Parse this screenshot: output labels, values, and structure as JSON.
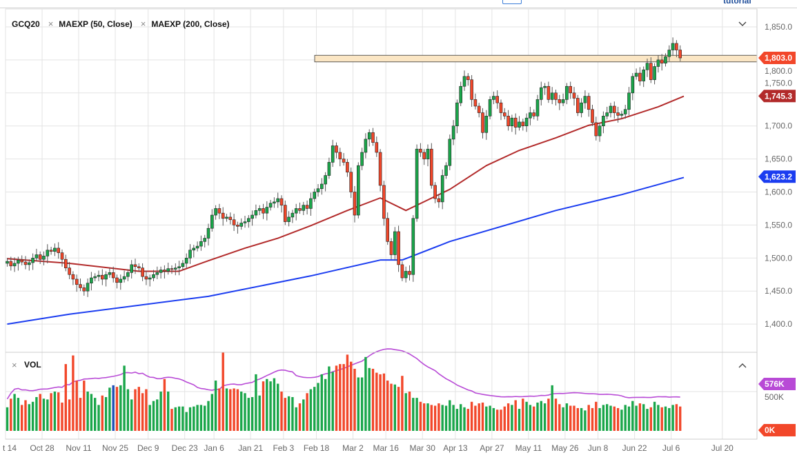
{
  "top": {
    "link_label": "tutorial"
  },
  "legend": {
    "symbol": "GCQ20",
    "ma50": "MAEXP (50, Close)",
    "ma200": "MAEXP (200, Close)",
    "vol": "VOL",
    "remove_glyph": "×"
  },
  "colors": {
    "up": "#1aa64a",
    "down": "#f2472a",
    "ma50": "#b22a2a",
    "ma200": "#1a3cf0",
    "volma": "#b84ad6",
    "band": "#fbe6c4",
    "blue_vol": "#1f4fb8"
  },
  "chart_data": {
    "type": "candlestick",
    "symbol": "GCQ20",
    "ylim": [
      1375,
      1870
    ],
    "y_ticks": [
      {
        "v": 1850,
        "l": "1,850.0"
      },
      {
        "v": 1800,
        "l": "1,800.0"
      },
      {
        "v": 1750,
        "l": "1,750.0"
      },
      {
        "v": 1700,
        "l": "1,700.0"
      },
      {
        "v": 1650,
        "l": "1,650.0"
      },
      {
        "v": 1600,
        "l": "1,600.0"
      },
      {
        "v": 1550,
        "l": "1,550.0"
      },
      {
        "v": 1500,
        "l": "1,500.0"
      },
      {
        "v": 1450,
        "l": "1,450.0"
      },
      {
        "v": 1400,
        "l": "1,400.0"
      }
    ],
    "x_ticks": [
      {
        "i": 0,
        "l": "t 14"
      },
      {
        "i": 10,
        "l": "Oct 28"
      },
      {
        "i": 20,
        "l": "Nov 11"
      },
      {
        "i": 30,
        "l": "Nov 25"
      },
      {
        "i": 39,
        "l": "Dec 9"
      },
      {
        "i": 49,
        "l": "Dec 23"
      },
      {
        "i": 57,
        "l": "Jan 6"
      },
      {
        "i": 67,
        "l": "Jan 21"
      },
      {
        "i": 76,
        "l": "Feb 3"
      },
      {
        "i": 85,
        "l": "Feb 18"
      },
      {
        "i": 95,
        "l": "Mar 2"
      },
      {
        "i": 104,
        "l": "Mar 16"
      },
      {
        "i": 114,
        "l": "Mar 30"
      },
      {
        "i": 123,
        "l": "Apr 13"
      },
      {
        "i": 133,
        "l": "Apr 27"
      },
      {
        "i": 143,
        "l": "May 11"
      },
      {
        "i": 153,
        "l": "May 26"
      },
      {
        "i": 162,
        "l": "Jun 8"
      },
      {
        "i": 172,
        "l": "Jun 22"
      },
      {
        "i": 182,
        "l": "Jul 6"
      },
      {
        "i": 196,
        "l": "Jul 20"
      }
    ],
    "closes": [
      1495,
      1488,
      1492,
      1497,
      1494,
      1490,
      1493,
      1500,
      1505,
      1498,
      1503,
      1512,
      1510,
      1515,
      1508,
      1498,
      1485,
      1475,
      1468,
      1460,
      1455,
      1450,
      1462,
      1470,
      1472,
      1474,
      1468,
      1475,
      1478,
      1470,
      1463,
      1468,
      1472,
      1478,
      1490,
      1487,
      1485,
      1472,
      1468,
      1470,
      1475,
      1478,
      1482,
      1480,
      1484,
      1483,
      1485,
      1487,
      1492,
      1500,
      1512,
      1515,
      1518,
      1525,
      1530,
      1545,
      1565,
      1575,
      1568,
      1560,
      1562,
      1558,
      1550,
      1548,
      1553,
      1555,
      1560,
      1565,
      1572,
      1575,
      1568,
      1577,
      1583,
      1585,
      1590,
      1580,
      1555,
      1562,
      1568,
      1575,
      1572,
      1580,
      1575,
      1590,
      1600,
      1605,
      1612,
      1625,
      1645,
      1670,
      1660,
      1650,
      1645,
      1630,
      1600,
      1565,
      1640,
      1660,
      1680,
      1690,
      1675,
      1660,
      1610,
      1560,
      1525,
      1505,
      1540,
      1490,
      1470,
      1480,
      1475,
      1560,
      1665,
      1660,
      1650,
      1665,
      1610,
      1590,
      1585,
      1625,
      1640,
      1680,
      1700,
      1735,
      1760,
      1775,
      1770,
      1740,
      1730,
      1720,
      1690,
      1715,
      1740,
      1745,
      1735,
      1720,
      1715,
      1700,
      1712,
      1698,
      1706,
      1700,
      1712,
      1720,
      1715,
      1740,
      1758,
      1760,
      1740,
      1750,
      1740,
      1735,
      1740,
      1760,
      1750,
      1742,
      1720,
      1735,
      1745,
      1725,
      1705,
      1685,
      1700,
      1715,
      1720,
      1730,
      1720,
      1716,
      1718,
      1725,
      1750,
      1775,
      1780,
      1768,
      1785,
      1795,
      1770,
      1790,
      1800,
      1795,
      1805,
      1815,
      1825,
      1815,
      1803
    ],
    "volume_k": [
      300,
      410,
      470,
      420,
      330,
      390,
      340,
      370,
      430,
      470,
      410,
      400,
      480,
      500,
      490,
      360,
      850,
      400,
      960,
      640,
      420,
      640,
      500,
      470,
      420,
      330,
      450,
      430,
      550,
      580,
      560,
      580,
      830,
      530,
      400,
      530,
      560,
      480,
      530,
      330,
      380,
      400,
      500,
      660,
      500,
      280,
      300,
      310,
      310,
      240,
      300,
      310,
      330,
      330,
      320,
      380,
      470,
      640,
      540,
      1000,
      540,
      530,
      540,
      530,
      500,
      480,
      420,
      430,
      720,
      450,
      630,
      660,
      630,
      670,
      600,
      500,
      420,
      440,
      430,
      300,
      350,
      400,
      480,
      530,
      560,
      610,
      720,
      660,
      820,
      750,
      830,
      850,
      850,
      970,
      880,
      790,
      680,
      680,
      940,
      800,
      790,
      740,
      720,
      730,
      640,
      600,
      590,
      560,
      700,
      480,
      500,
      420,
      420,
      370,
      350,
      350,
      330,
      320,
      350,
      330,
      320,
      390,
      330,
      280,
      340,
      300,
      280,
      370,
      320,
      350,
      360,
      310,
      320,
      290,
      270,
      270,
      310,
      350,
      330,
      390,
      280,
      410,
      370,
      330,
      310,
      360,
      380,
      350,
      410,
      580,
      410,
      340,
      300,
      350,
      320,
      320,
      290,
      290,
      260,
      330,
      290,
      370,
      290,
      330,
      340,
      320,
      310,
      290,
      270,
      330,
      310,
      380,
      320,
      350,
      340,
      280,
      300,
      370,
      330,
      300,
      310,
      290,
      330,
      340,
      310
    ],
    "blue_volume_index": 29,
    "ma50": [
      [
        0,
        1499
      ],
      [
        17,
        1492
      ],
      [
        36,
        1480
      ],
      [
        47,
        1480
      ],
      [
        55,
        1496
      ],
      [
        65,
        1515
      ],
      [
        74,
        1530
      ],
      [
        83,
        1549
      ],
      [
        93,
        1572
      ],
      [
        102,
        1591
      ],
      [
        109,
        1572
      ],
      [
        115,
        1588
      ],
      [
        121,
        1604
      ],
      [
        131,
        1640
      ],
      [
        140,
        1663
      ],
      [
        150,
        1682
      ],
      [
        159,
        1701
      ],
      [
        168,
        1711
      ],
      [
        178,
        1729
      ],
      [
        185,
        1745
      ]
    ],
    "ma200": [
      [
        0,
        1400
      ],
      [
        17,
        1415
      ],
      [
        55,
        1442
      ],
      [
        83,
        1473
      ],
      [
        102,
        1497
      ],
      [
        108,
        1497
      ],
      [
        121,
        1525
      ],
      [
        150,
        1572
      ],
      [
        168,
        1596
      ],
      [
        185,
        1622
      ]
    ],
    "resistance_band": [
      1797,
      1807
    ],
    "price_tags": [
      {
        "label": "1,803.0",
        "v": 1803,
        "color": "#f2472a"
      },
      {
        "label": "1,745.3",
        "v": 1745.3,
        "color": "#b22a2a"
      },
      {
        "label": "1,623.2",
        "v": 1623.2,
        "color": "#1a3cf0"
      }
    ],
    "volume_tags": [
      {
        "label": "576K",
        "color": "#b84ad6"
      },
      {
        "label": "0K",
        "color": "#f2472a"
      }
    ],
    "volume_axis_hidden_label": "500K"
  }
}
